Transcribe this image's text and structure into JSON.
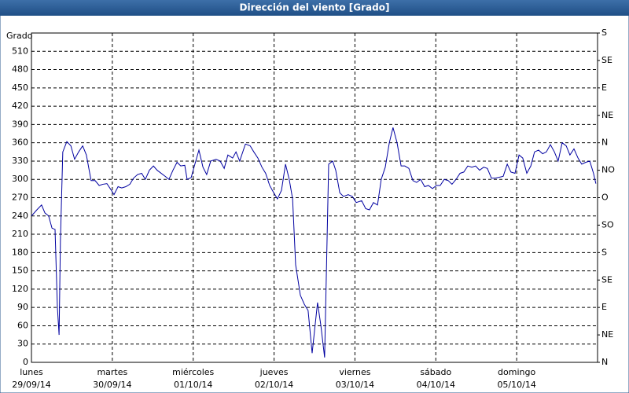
{
  "chart_data": {
    "type": "line",
    "title": "Dirección del viento [Grado]",
    "ylabel": "Grado",
    "xlim": [
      0,
      168
    ],
    "xticks": [
      {
        "value": 0,
        "label": "lunes",
        "date": "29/09/14"
      },
      {
        "value": 24,
        "label": "martes",
        "date": "30/09/14"
      },
      {
        "value": 48,
        "label": "miércoles",
        "date": "01/10/14"
      },
      {
        "value": 72,
        "label": "jueves",
        "date": "02/10/14"
      },
      {
        "value": 96,
        "label": "viernes",
        "date": "03/10/14"
      },
      {
        "value": 120,
        "label": "sábado",
        "date": "04/10/14"
      },
      {
        "value": 144,
        "label": "domingo",
        "date": "05/10/14"
      }
    ],
    "ylim": [
      0,
      540
    ],
    "yticks": [
      0,
      30,
      60,
      90,
      120,
      150,
      180,
      210,
      240,
      270,
      300,
      330,
      360,
      390,
      420,
      450,
      480,
      510
    ],
    "y2lim": [
      0,
      540
    ],
    "y2ticks": [
      {
        "value": 0,
        "label": "N"
      },
      {
        "value": 45,
        "label": "NE"
      },
      {
        "value": 90,
        "label": "E"
      },
      {
        "value": 135,
        "label": "SE"
      },
      {
        "value": 180,
        "label": "S"
      },
      {
        "value": 225,
        "label": "SO"
      },
      {
        "value": 270,
        "label": "O"
      },
      {
        "value": 315,
        "label": "NO"
      },
      {
        "value": 360,
        "label": "N"
      },
      {
        "value": 405,
        "label": "NE"
      },
      {
        "value": 450,
        "label": "E"
      },
      {
        "value": 495,
        "label": "SE"
      },
      {
        "value": 540,
        "label": "S"
      }
    ],
    "grid": true,
    "series": [
      {
        "color": "#0000a0",
        "x": [
          0,
          1.6,
          3.0,
          4.0,
          5.1,
          6.1,
          7.0,
          7.7,
          8.2,
          8.6,
          9.3,
          10.5,
          11.7,
          12.8,
          14.0,
          15.2,
          16.3,
          17.7,
          18.9,
          20.1,
          21.2,
          22.4,
          23.6,
          24.5,
          25.7,
          26.8,
          28.0,
          29.2,
          30.3,
          31.5,
          32.7,
          33.8,
          35.0,
          36.2,
          37.3,
          39.7,
          40.8,
          42.0,
          43.2,
          44.3,
          45.5,
          46.2,
          47.4,
          48.5,
          49.7,
          50.9,
          52.0,
          53.2,
          54.8,
          56.0,
          57.2,
          58.3,
          59.7,
          60.7,
          61.8,
          63.5,
          64.9,
          66.0,
          67.2,
          68.4,
          69.5,
          70.7,
          71.9,
          73.0,
          74.2,
          75.4,
          76.5,
          77.5,
          78.4,
          79.8,
          81.0,
          82.1,
          83.3,
          84.9,
          85.9,
          87.0,
          88.2,
          89.4,
          90.3,
          91.5,
          92.6,
          94.0,
          95.2,
          96.4,
          98.0,
          99.2,
          100.3,
          101.5,
          102.7,
          103.8,
          105.0,
          106.2,
          107.3,
          108.5,
          109.7,
          110.8,
          112.0,
          113.2,
          114.3,
          115.5,
          116.7,
          117.8,
          119.0,
          120.2,
          121.3,
          122.5,
          123.7,
          124.8,
          126.0,
          127.2,
          128.3,
          129.5,
          130.7,
          131.8,
          133.0,
          134.2,
          135.3,
          136.5,
          137.7,
          140.0,
          141.2,
          142.3,
          143.5,
          144.7,
          145.8,
          147.0,
          148.2,
          149.3,
          150.5,
          151.7,
          152.8,
          154.0,
          155.2,
          156.3,
          157.5,
          158.7,
          159.8,
          161.0,
          162.2,
          163.3,
          164.5,
          165.7,
          166.8,
          167.5
        ],
        "values": [
          240,
          250,
          258,
          245,
          240,
          220,
          218,
          90,
          45,
          200,
          345,
          362,
          355,
          333,
          345,
          355,
          340,
          298,
          298,
          290,
          292,
          293,
          283,
          275,
          288,
          286,
          288,
          292,
          302,
          308,
          310,
          300,
          315,
          322,
          315,
          305,
          300,
          315,
          328,
          322,
          323,
          300,
          303,
          325,
          348,
          320,
          308,
          330,
          333,
          330,
          318,
          340,
          335,
          345,
          330,
          358,
          355,
          345,
          335,
          320,
          310,
          290,
          278,
          268,
          282,
          325,
          300,
          268,
          160,
          110,
          95,
          85,
          15,
          98,
          60,
          8,
          325,
          330,
          315,
          278,
          272,
          275,
          272,
          262,
          265,
          252,
          250,
          262,
          258,
          300,
          320,
          360,
          385,
          360,
          322,
          322,
          318,
          298,
          295,
          300,
          288,
          290,
          285,
          290,
          290,
          300,
          298,
          292,
          300,
          310,
          312,
          322,
          320,
          322,
          315,
          320,
          318,
          302,
          302,
          305,
          325,
          312,
          310,
          340,
          335,
          310,
          322,
          345,
          348,
          342,
          345,
          357,
          345,
          330,
          360,
          355,
          340,
          350,
          335,
          325,
          328,
          330,
          310,
          293
        ]
      }
    ]
  }
}
